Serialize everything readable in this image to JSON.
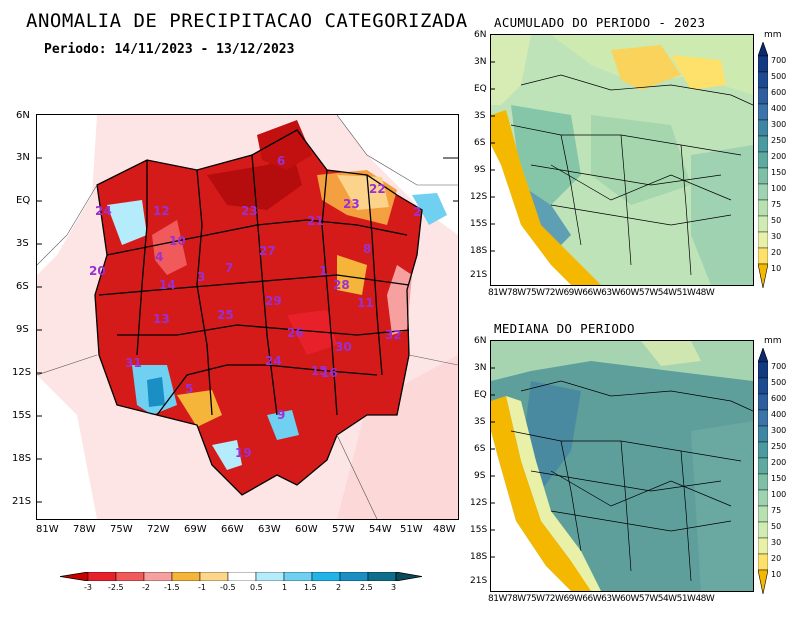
{
  "main_title": "ANOMALIA DE PRECIPITACAO CATEGORIZADA",
  "period_label": "Periodo: 14/11/2023 - 13/12/2023",
  "panel_accum_title": "ACUMULADO DO PERIODO - 2023",
  "panel_median_title": "MEDIANA DO PERIODO",
  "left_map": {
    "lat_ticks": [
      "6N",
      "3N",
      "EQ",
      "3S",
      "6S",
      "9S",
      "12S",
      "15S",
      "18S",
      "21S"
    ],
    "lon_ticks": [
      "81W",
      "78W",
      "75W",
      "72W",
      "69W",
      "66W",
      "63W",
      "60W",
      "57W",
      "54W",
      "51W",
      "48W"
    ],
    "basin_labels": [
      "24",
      "12",
      "23",
      "21",
      "22",
      "6",
      "23",
      "2",
      "10",
      "4",
      "3",
      "27",
      "20",
      "7",
      "14",
      "13",
      "29",
      "11",
      "8",
      "1",
      "28",
      "25",
      "26",
      "32",
      "31",
      "15",
      "5",
      "24",
      "30",
      "16",
      "9",
      "19"
    ]
  },
  "right_maps": {
    "lat_ticks": [
      "6N",
      "3N",
      "EQ",
      "3S",
      "6S",
      "9S",
      "12S",
      "15S",
      "18S",
      "21S"
    ],
    "lon_ticks": [
      "81W",
      "78W",
      "75W",
      "72W",
      "69W",
      "66W",
      "63W",
      "60W",
      "57W",
      "54W",
      "51W",
      "48W"
    ],
    "unit": "mm",
    "scale_labels": [
      "700",
      "500",
      "600",
      "400",
      "300",
      "250",
      "200",
      "150",
      "100",
      "75",
      "50",
      "30",
      "20",
      "10"
    ]
  },
  "anomaly_colorbar": {
    "labels": [
      "-3",
      "-2.5",
      "-2",
      "-1.5",
      "-1",
      "-0.5",
      "0.5",
      "1",
      "1.5",
      "2",
      "2.5",
      "3"
    ],
    "colors": [
      "#c80000",
      "#e8202a",
      "#f05a5a",
      "#f7a0a0",
      "#f5b43a",
      "#fdd68a",
      "#ffffff",
      "#b4ecfb",
      "#6fd0f2",
      "#20b4e8",
      "#1a8fc4",
      "#0f6e8c",
      "#0a4a5e"
    ]
  },
  "precip_colorbar": {
    "colors": [
      "#f5b800",
      "#fde16a",
      "#e9f0a8",
      "#d0ecb2",
      "#b8e0b0",
      "#9fd2b0",
      "#7fbfa8",
      "#5faaa0",
      "#4a9aa0",
      "#3f86a3",
      "#3a74a8",
      "#2f5e9e",
      "#1e4a90",
      "#123a80",
      "#0a2a70"
    ]
  }
}
